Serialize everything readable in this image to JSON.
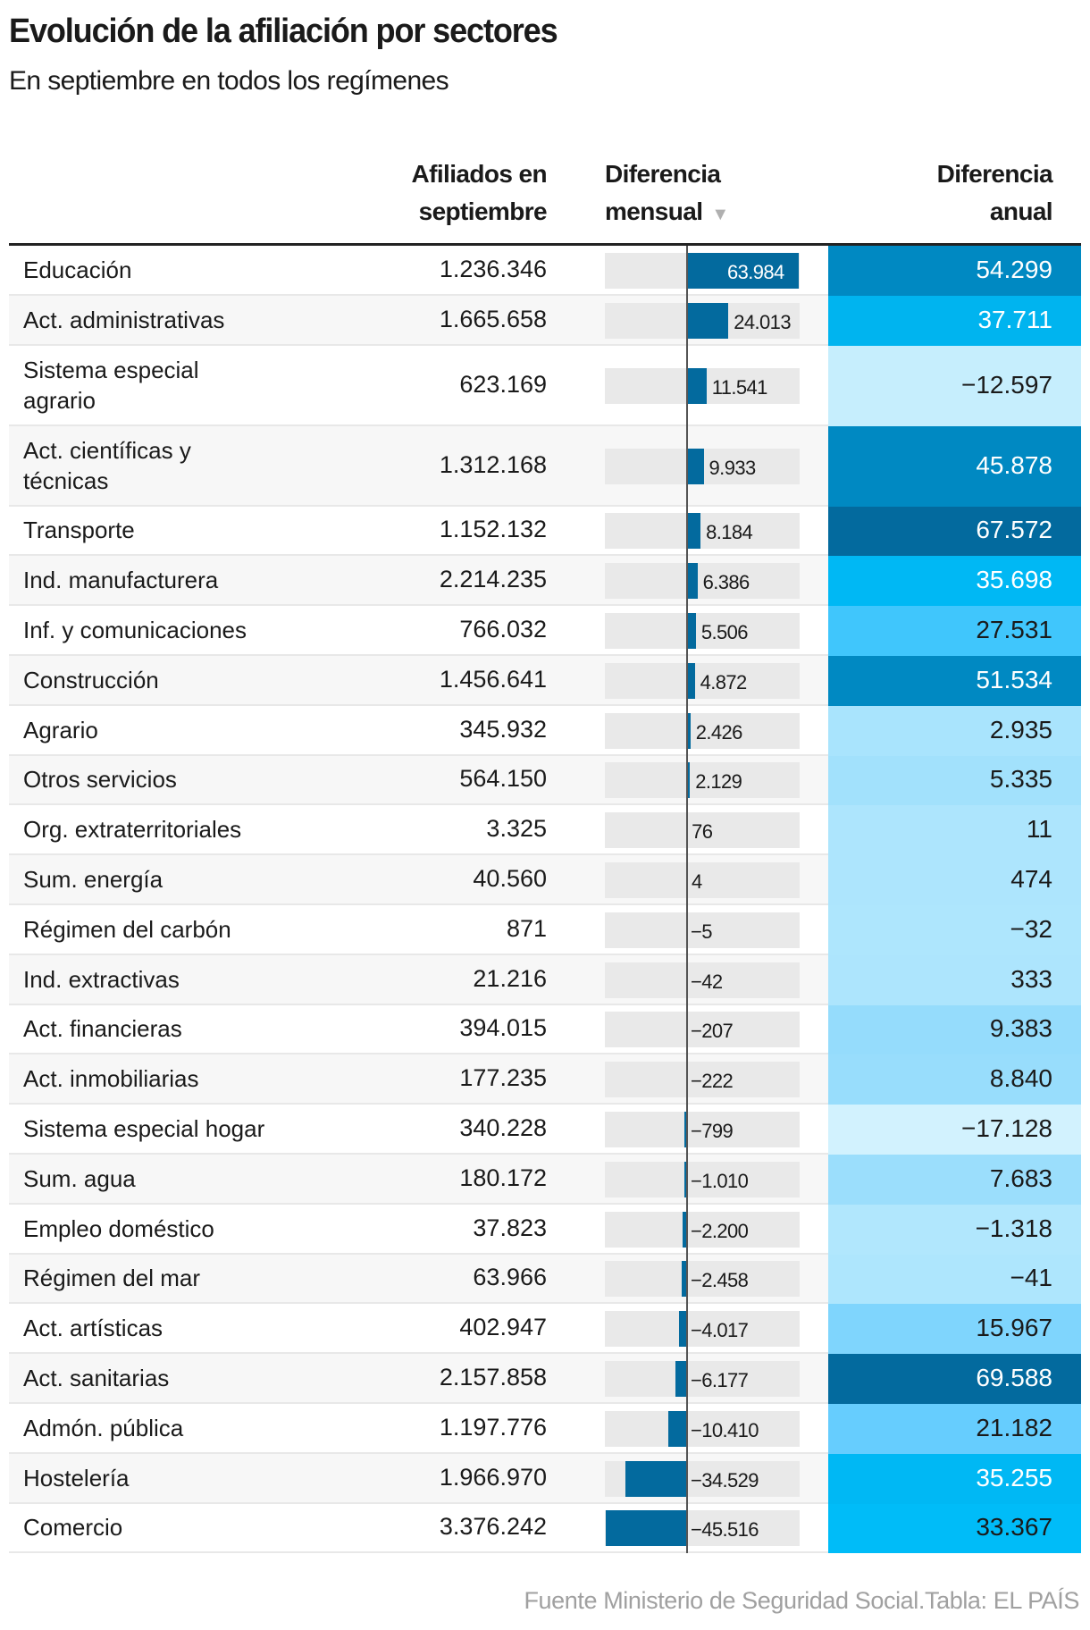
{
  "title": "Evolución de la afiliación por sectores",
  "subtitle": "En septiembre en todos los regímenes",
  "columns": {
    "afiliados": [
      "Afiliados en",
      "septiembre"
    ],
    "mensual": [
      "Diferencia",
      "mensual"
    ],
    "anual": [
      "Diferencia",
      "anual"
    ],
    "sort_icon": "sort-descending-triangle-icon"
  },
  "colors": {
    "bar": "#036a9e",
    "bar_bg": "#e9e9e9",
    "axis": "#555555"
  },
  "rows": [
    {
      "sector": "Educación",
      "afiliados": "1.236.346",
      "mensual": 63984,
      "mensual_label": "63.984",
      "anual": "54.299",
      "anual_color": "#0089c2"
    },
    {
      "sector": "Act. administrativas",
      "afiliados": "1.665.658",
      "mensual": 24013,
      "mensual_label": "24.013",
      "anual": "37.711",
      "anual_color": "#00b4ef"
    },
    {
      "sector": "Sistema especial agrario",
      "afiliados": "623.169",
      "mensual": 11541,
      "mensual_label": "11.541",
      "anual": "−12.597",
      "anual_color": "#c6eefd"
    },
    {
      "sector": "Act. científicas y técnicas",
      "afiliados": "1.312.168",
      "mensual": 9933,
      "mensual_label": "9.933",
      "anual": "45.878",
      "anual_color": "#0089c2"
    },
    {
      "sector": "Transporte",
      "afiliados": "1.152.132",
      "mensual": 8184,
      "mensual_label": "8.184",
      "anual": "67.572",
      "anual_color": "#036a9e"
    },
    {
      "sector": "Ind. manufacturera",
      "afiliados": "2.214.235",
      "mensual": 6386,
      "mensual_label": "6.386",
      "anual": "35.698",
      "anual_color": "#00b8f4"
    },
    {
      "sector": "Inf. y comunicaciones",
      "afiliados": "766.032",
      "mensual": 5506,
      "mensual_label": "5.506",
      "anual": "27.531",
      "anual_color": "#40c6fc"
    },
    {
      "sector": "Construcción",
      "afiliados": "1.456.641",
      "mensual": 4872,
      "mensual_label": "4.872",
      "anual": "51.534",
      "anual_color": "#0089c2"
    },
    {
      "sector": "Agrario",
      "afiliados": "345.932",
      "mensual": 2426,
      "mensual_label": "2.426",
      "anual": "2.935",
      "anual_color": "#a9e4fd"
    },
    {
      "sector": "Otros servicios",
      "afiliados": "564.150",
      "mensual": 2129,
      "mensual_label": "2.129",
      "anual": "5.335",
      "anual_color": "#a2e1fc"
    },
    {
      "sector": "Org. extraterritoriales",
      "afiliados": "3.325",
      "mensual": 76,
      "mensual_label": "76",
      "anual": "11",
      "anual_color": "#ade5fd"
    },
    {
      "sector": "Sum. energía",
      "afiliados": "40.560",
      "mensual": 4,
      "mensual_label": "4",
      "anual": "474",
      "anual_color": "#ade5fd"
    },
    {
      "sector": "Régimen del carbón",
      "afiliados": "871",
      "mensual": -5,
      "mensual_label": "−5",
      "anual": "−32",
      "anual_color": "#aee6fd"
    },
    {
      "sector": "Ind. extractivas",
      "afiliados": "21.216",
      "mensual": -42,
      "mensual_label": "−42",
      "anual": "333",
      "anual_color": "#ade5fd"
    },
    {
      "sector": "Act. financieras",
      "afiliados": "394.015",
      "mensual": -207,
      "mensual_label": "−207",
      "anual": "9.383",
      "anual_color": "#95dcfc"
    },
    {
      "sector": "Act. inmobiliarias",
      "afiliados": "177.235",
      "mensual": -222,
      "mensual_label": "−222",
      "anual": "8.840",
      "anual_color": "#98ddfc"
    },
    {
      "sector": "Sistema especial hogar",
      "afiliados": "340.228",
      "mensual": -799,
      "mensual_label": "−799",
      "anual": "−17.128",
      "anual_color": "#d2f2fe"
    },
    {
      "sector": "Sum. agua",
      "afiliados": "180.172",
      "mensual": -1010,
      "mensual_label": "−1.010",
      "anual": "7.683",
      "anual_color": "#9bdefc"
    },
    {
      "sector": "Empleo doméstico",
      "afiliados": "37.823",
      "mensual": -2200,
      "mensual_label": "−2.200",
      "anual": "−1.318",
      "anual_color": "#b1e7fd"
    },
    {
      "sector": "Régimen del mar",
      "afiliados": "63.966",
      "mensual": -2458,
      "mensual_label": "−2.458",
      "anual": "−41",
      "anual_color": "#aee6fd"
    },
    {
      "sector": "Act. artísticas",
      "afiliados": "402.947",
      "mensual": -4017,
      "mensual_label": "−4.017",
      "anual": "15.967",
      "anual_color": "#7fd5fd"
    },
    {
      "sector": "Act. sanitarias",
      "afiliados": "2.157.858",
      "mensual": -6177,
      "mensual_label": "−6.177",
      "anual": "69.588",
      "anual_color": "#036a9e"
    },
    {
      "sector": "Admón. pública",
      "afiliados": "1.197.776",
      "mensual": -10410,
      "mensual_label": "−10.410",
      "anual": "21.182",
      "anual_color": "#66cdfe"
    },
    {
      "sector": "Hostelería",
      "afiliados": "1.966.970",
      "mensual": -34529,
      "mensual_label": "−34.529",
      "anual": "35.255",
      "anual_color": "#00b8f4"
    },
    {
      "sector": "Comercio",
      "afiliados": "3.376.242",
      "mensual": -45516,
      "mensual_label": "−45.516",
      "anual": "33.367",
      "anual_color": "#00bcf8"
    }
  ],
  "source": "Fuente Ministerio de Seguridad Social.Tabla: EL PAÍS"
}
